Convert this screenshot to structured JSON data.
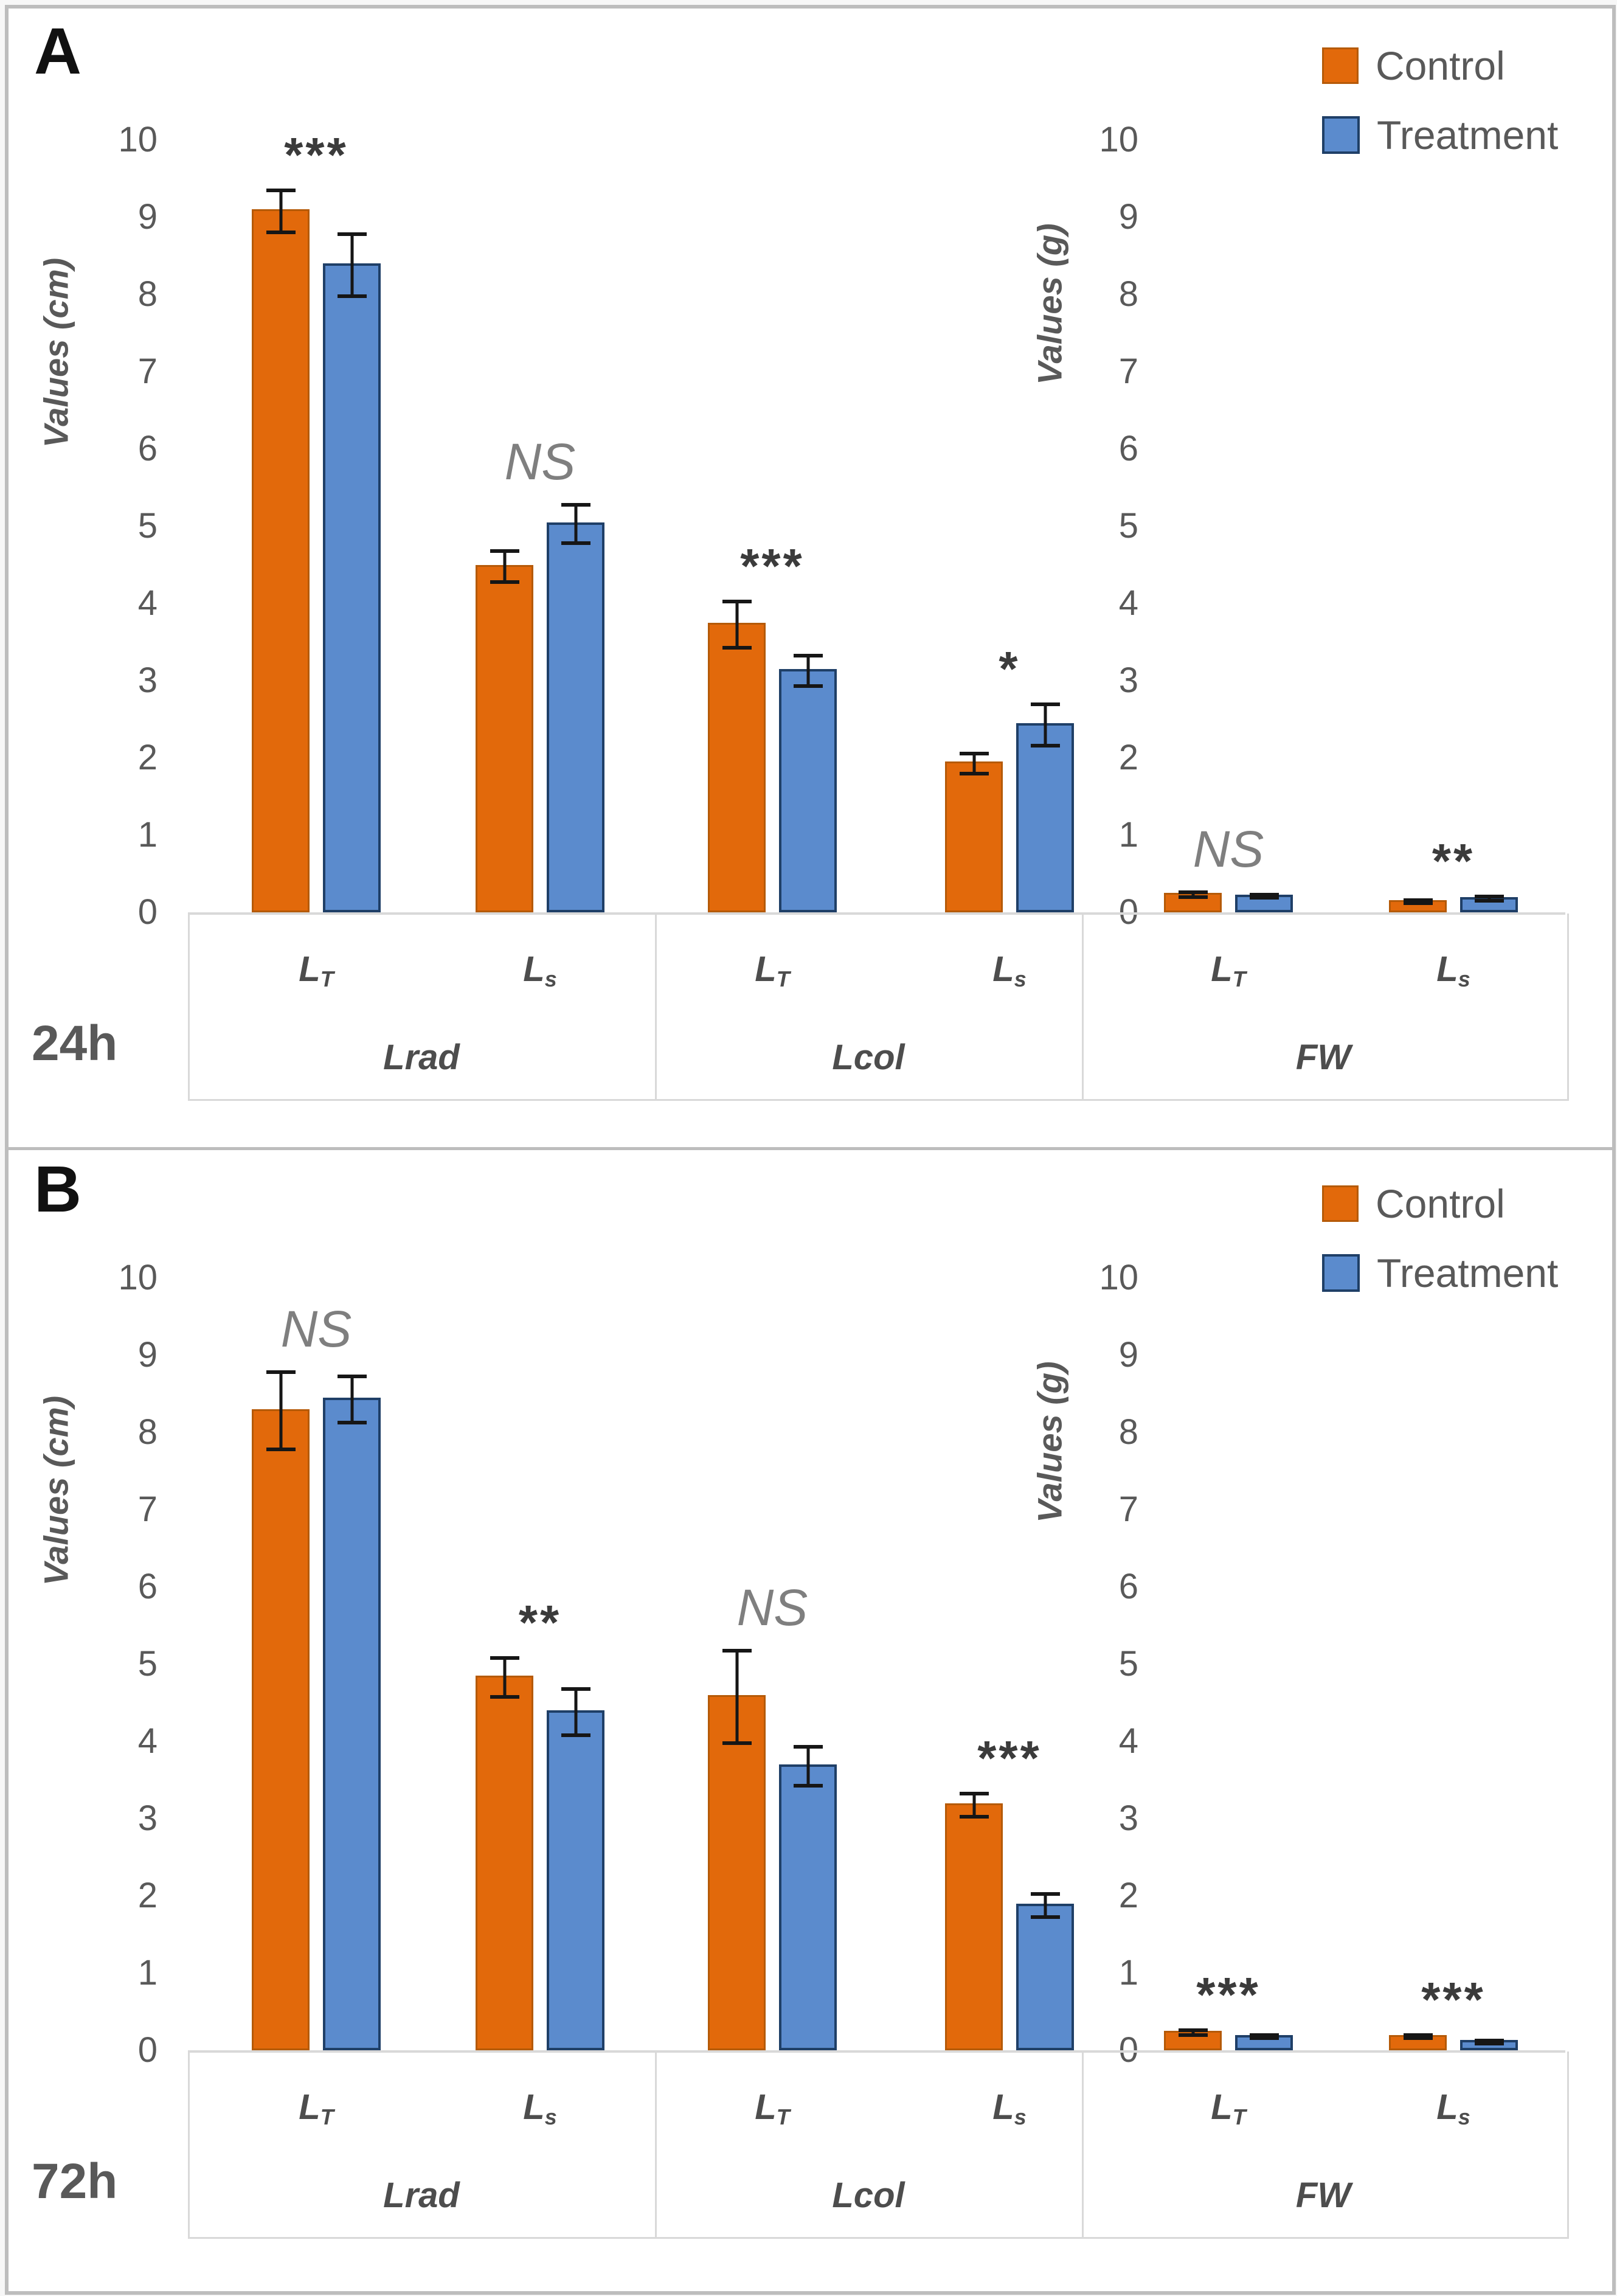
{
  "figure": {
    "legend": {
      "control": "Control",
      "treatment": "Treatment"
    },
    "colors": {
      "control_fill": "#e2690b",
      "control_border": "#b55a08",
      "treatment_fill": "#5b8bcd",
      "treatment_border": "#1f3f67",
      "axis_text": "#595959",
      "ns_text": "#7f7f7f",
      "stars_text": "#3b3b3b",
      "grid_line": "#d9d9d9",
      "frame": "#bdbdbd",
      "error_bar": "#161616"
    },
    "panels": [
      {
        "label": "A",
        "time_label": "24h",
        "left_axis_title": "Values (cm)",
        "right_axis_title": "Values (g)",
        "groups": [
          {
            "label": "Lrad",
            "subgroups": [
              {
                "label_main": "L",
                "label_sub": "T"
              },
              {
                "label_main": "L",
                "label_sub": "s"
              }
            ]
          },
          {
            "label": "Lcol",
            "subgroups": [
              {
                "label_main": "L",
                "label_sub": "T"
              },
              {
                "label_main": "L",
                "label_sub": "s"
              }
            ]
          },
          {
            "label": "FW",
            "subgroups": [
              {
                "label_main": "L",
                "label_sub": "T"
              },
              {
                "label_main": "L",
                "label_sub": "s"
              }
            ]
          }
        ]
      },
      {
        "label": "B",
        "time_label": "72h",
        "left_axis_title": "Values (cm)",
        "right_axis_title": "Values (g)",
        "groups": [
          {
            "label": "Lrad",
            "subgroups": [
              {
                "label_main": "L",
                "label_sub": "T"
              },
              {
                "label_main": "L",
                "label_sub": "s"
              }
            ]
          },
          {
            "label": "Lcol",
            "subgroups": [
              {
                "label_main": "L",
                "label_sub": "T"
              },
              {
                "label_main": "L",
                "label_sub": "s"
              }
            ]
          },
          {
            "label": "FW",
            "subgroups": [
              {
                "label_main": "L",
                "label_sub": "T"
              },
              {
                "label_main": "L",
                "label_sub": "s"
              }
            ]
          }
        ]
      }
    ]
  },
  "chart_data": [
    {
      "type": "bar",
      "panel": "A",
      "time": "24h",
      "categories": [
        "Lrad LT",
        "Lrad Ls",
        "Lcol LT",
        "Lcol Ls",
        "FW LT",
        "FW Ls"
      ],
      "group_labels": [
        "Lrad",
        "Lcol",
        "FW"
      ],
      "subgroup_labels": [
        "LT",
        "Ls",
        "LT",
        "Ls",
        "LT",
        "Ls"
      ],
      "series": [
        {
          "name": "Control",
          "values": [
            9.1,
            4.5,
            3.75,
            1.95,
            0.25,
            0.16
          ],
          "errors": [
            0.27,
            0.2,
            0.3,
            0.13,
            0.03,
            0.02
          ]
        },
        {
          "name": "Treatment",
          "values": [
            8.4,
            5.05,
            3.15,
            2.45,
            0.23,
            0.2
          ],
          "errors": [
            0.4,
            0.25,
            0.2,
            0.27,
            0.02,
            0.03
          ]
        }
      ],
      "significance": [
        "***",
        "NS",
        "***",
        "*",
        "NS",
        "**"
      ],
      "ylabel_left": "Values (cm)",
      "ylabel_right": "Values (g)",
      "ylim": [
        0,
        10
      ],
      "ytick_step": 1,
      "grid": false,
      "legend_position": "top-right"
    },
    {
      "type": "bar",
      "panel": "B",
      "time": "72h",
      "categories": [
        "Lrad LT",
        "Lrad Ls",
        "Lcol LT",
        "Lcol Ls",
        "FW LT",
        "FW Ls"
      ],
      "group_labels": [
        "Lrad",
        "Lcol",
        "FW"
      ],
      "subgroup_labels": [
        "LT",
        "Ls",
        "LT",
        "Ls",
        "LT",
        "Ls"
      ],
      "series": [
        {
          "name": "Control",
          "values": [
            8.3,
            4.85,
            4.6,
            3.2,
            0.25,
            0.2
          ],
          "errors": [
            0.5,
            0.25,
            0.6,
            0.15,
            0.03,
            0.02
          ]
        },
        {
          "name": "Treatment",
          "values": [
            8.45,
            4.4,
            3.7,
            1.9,
            0.2,
            0.13
          ],
          "errors": [
            0.3,
            0.3,
            0.25,
            0.15,
            0.02,
            0.02
          ]
        }
      ],
      "significance": [
        "NS",
        "**",
        "NS",
        "***",
        "***",
        "***"
      ],
      "ylabel_left": "Values (cm)",
      "ylabel_right": "Values (g)",
      "ylim": [
        0,
        10
      ],
      "ytick_step": 1,
      "grid": false,
      "legend_position": "top-right"
    }
  ]
}
